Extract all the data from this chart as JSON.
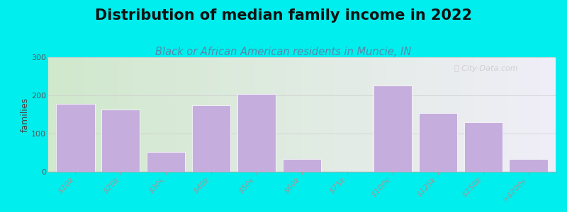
{
  "title": "Distribution of median family income in 2022",
  "subtitle": "Black or African American residents in Muncie, IN",
  "ylabel": "families",
  "bg_color": "#00EEEE",
  "bar_color": "#c5aede",
  "bar_edgecolor": "#ffffff",
  "categories": [
    "$10k",
    "$20k",
    "$30k",
    "$40k",
    "$50k",
    "$60k",
    "$75k",
    "$100k",
    "$125k",
    "$150k",
    ">$200k"
  ],
  "values": [
    178,
    163,
    52,
    175,
    203,
    33,
    0,
    225,
    153,
    130,
    33
  ],
  "ylim": [
    0,
    300
  ],
  "yticks": [
    0,
    100,
    200,
    300
  ],
  "watermark": "City-Data.com",
  "title_fontsize": 15,
  "subtitle_fontsize": 10.5,
  "ylabel_fontsize": 9,
  "tick_fontsize": 8,
  "grad_left": "#d0e8cc",
  "grad_right": "#f0eef8",
  "title_color": "#111111",
  "subtitle_color": "#5588aa",
  "ylabel_color": "#444444",
  "tick_color": "#555555",
  "watermark_color": "#c8c8c8"
}
